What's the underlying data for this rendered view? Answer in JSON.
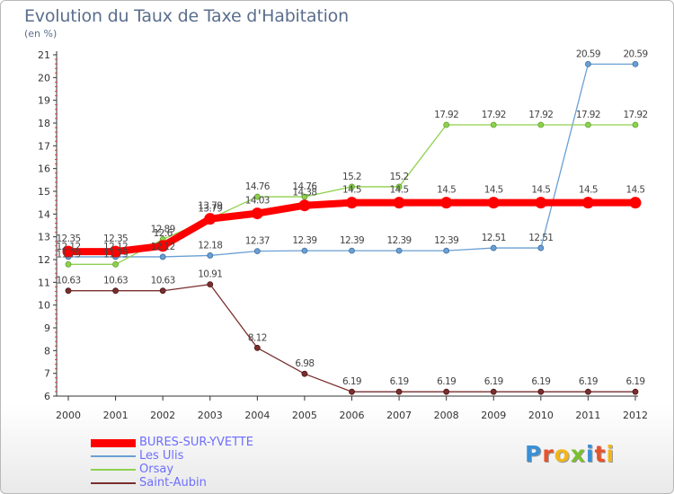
{
  "title": "Evolution du Taux de Taxe d'Habitation",
  "subtitle": "(en %)",
  "brand": {
    "text": "Proxiti",
    "colors": [
      "#3a8fd6",
      "#e8522b",
      "#f2b61b",
      "#7abf2e",
      "#3a8fd6",
      "#e8522b",
      "#f2b61b"
    ]
  },
  "chart_data": {
    "type": "line",
    "title": "Evolution du Taux de Taxe d'Habitation",
    "ylabel": "(en %)",
    "xlabel": "",
    "x": [
      "2000",
      "2001",
      "2002",
      "2003",
      "2004",
      "2005",
      "2006",
      "2007",
      "2008",
      "2009",
      "2010",
      "2011",
      "2012"
    ],
    "ylim": [
      6,
      21
    ],
    "yticks": [
      "6",
      "7",
      "8",
      "9",
      "10",
      "11",
      "12",
      "13",
      "14",
      "15",
      "16",
      "17",
      "18",
      "19",
      "20",
      "21"
    ],
    "grid": false,
    "legend_position": "bottom-left",
    "series": [
      {
        "name": "BURES-SUR-YVETTE",
        "color": "#ff0000",
        "values": [
          12.35,
          12.35,
          12.6,
          13.79,
          14.03,
          14.38,
          14.5,
          14.5,
          14.5,
          14.5,
          14.5,
          14.5,
          14.5
        ],
        "labels": [
          "12.35",
          "12.35",
          "12.6",
          "13.79",
          "14.03",
          "14.38",
          "14.5",
          "14.5",
          "14.5",
          "14.5",
          "14.5",
          "14.5",
          "14.5"
        ]
      },
      {
        "name": "Les Ulis",
        "color": "#6a9fd4",
        "values": [
          12.12,
          12.12,
          12.12,
          12.18,
          12.37,
          12.39,
          12.39,
          12.39,
          12.39,
          12.51,
          12.51,
          20.59,
          20.59
        ],
        "labels": [
          "12.12",
          "12.12",
          "12.12",
          "12.18",
          "12.37",
          "12.39",
          "12.39",
          "12.39",
          "12.39",
          "12.51",
          "12.51",
          "20.59",
          "20.59"
        ]
      },
      {
        "name": "Orsay",
        "color": "#8fd14f",
        "values": [
          11.79,
          11.79,
          12.89,
          13.79,
          14.76,
          14.76,
          15.2,
          15.2,
          17.92,
          17.92,
          17.92,
          17.92,
          17.92
        ],
        "labels": [
          "11.79",
          "11.79",
          "12.89",
          "13.79",
          "14.76",
          "14.76",
          "15.2",
          "15.2",
          "17.92",
          "17.92",
          "17.92",
          "17.92",
          "17.92"
        ]
      },
      {
        "name": "Saint-Aubin",
        "color": "#7a2e2e",
        "values": [
          10.63,
          10.63,
          10.63,
          10.91,
          8.12,
          6.98,
          6.19,
          6.19,
          6.19,
          6.19,
          6.19,
          6.19,
          6.19
        ],
        "labels": [
          "10.63",
          "10.63",
          "10.63",
          "10.91",
          "8.12",
          "6.98",
          "6.19",
          "6.19",
          "6.19",
          "6.19",
          "6.19",
          "6.19",
          "6.19"
        ]
      }
    ]
  }
}
